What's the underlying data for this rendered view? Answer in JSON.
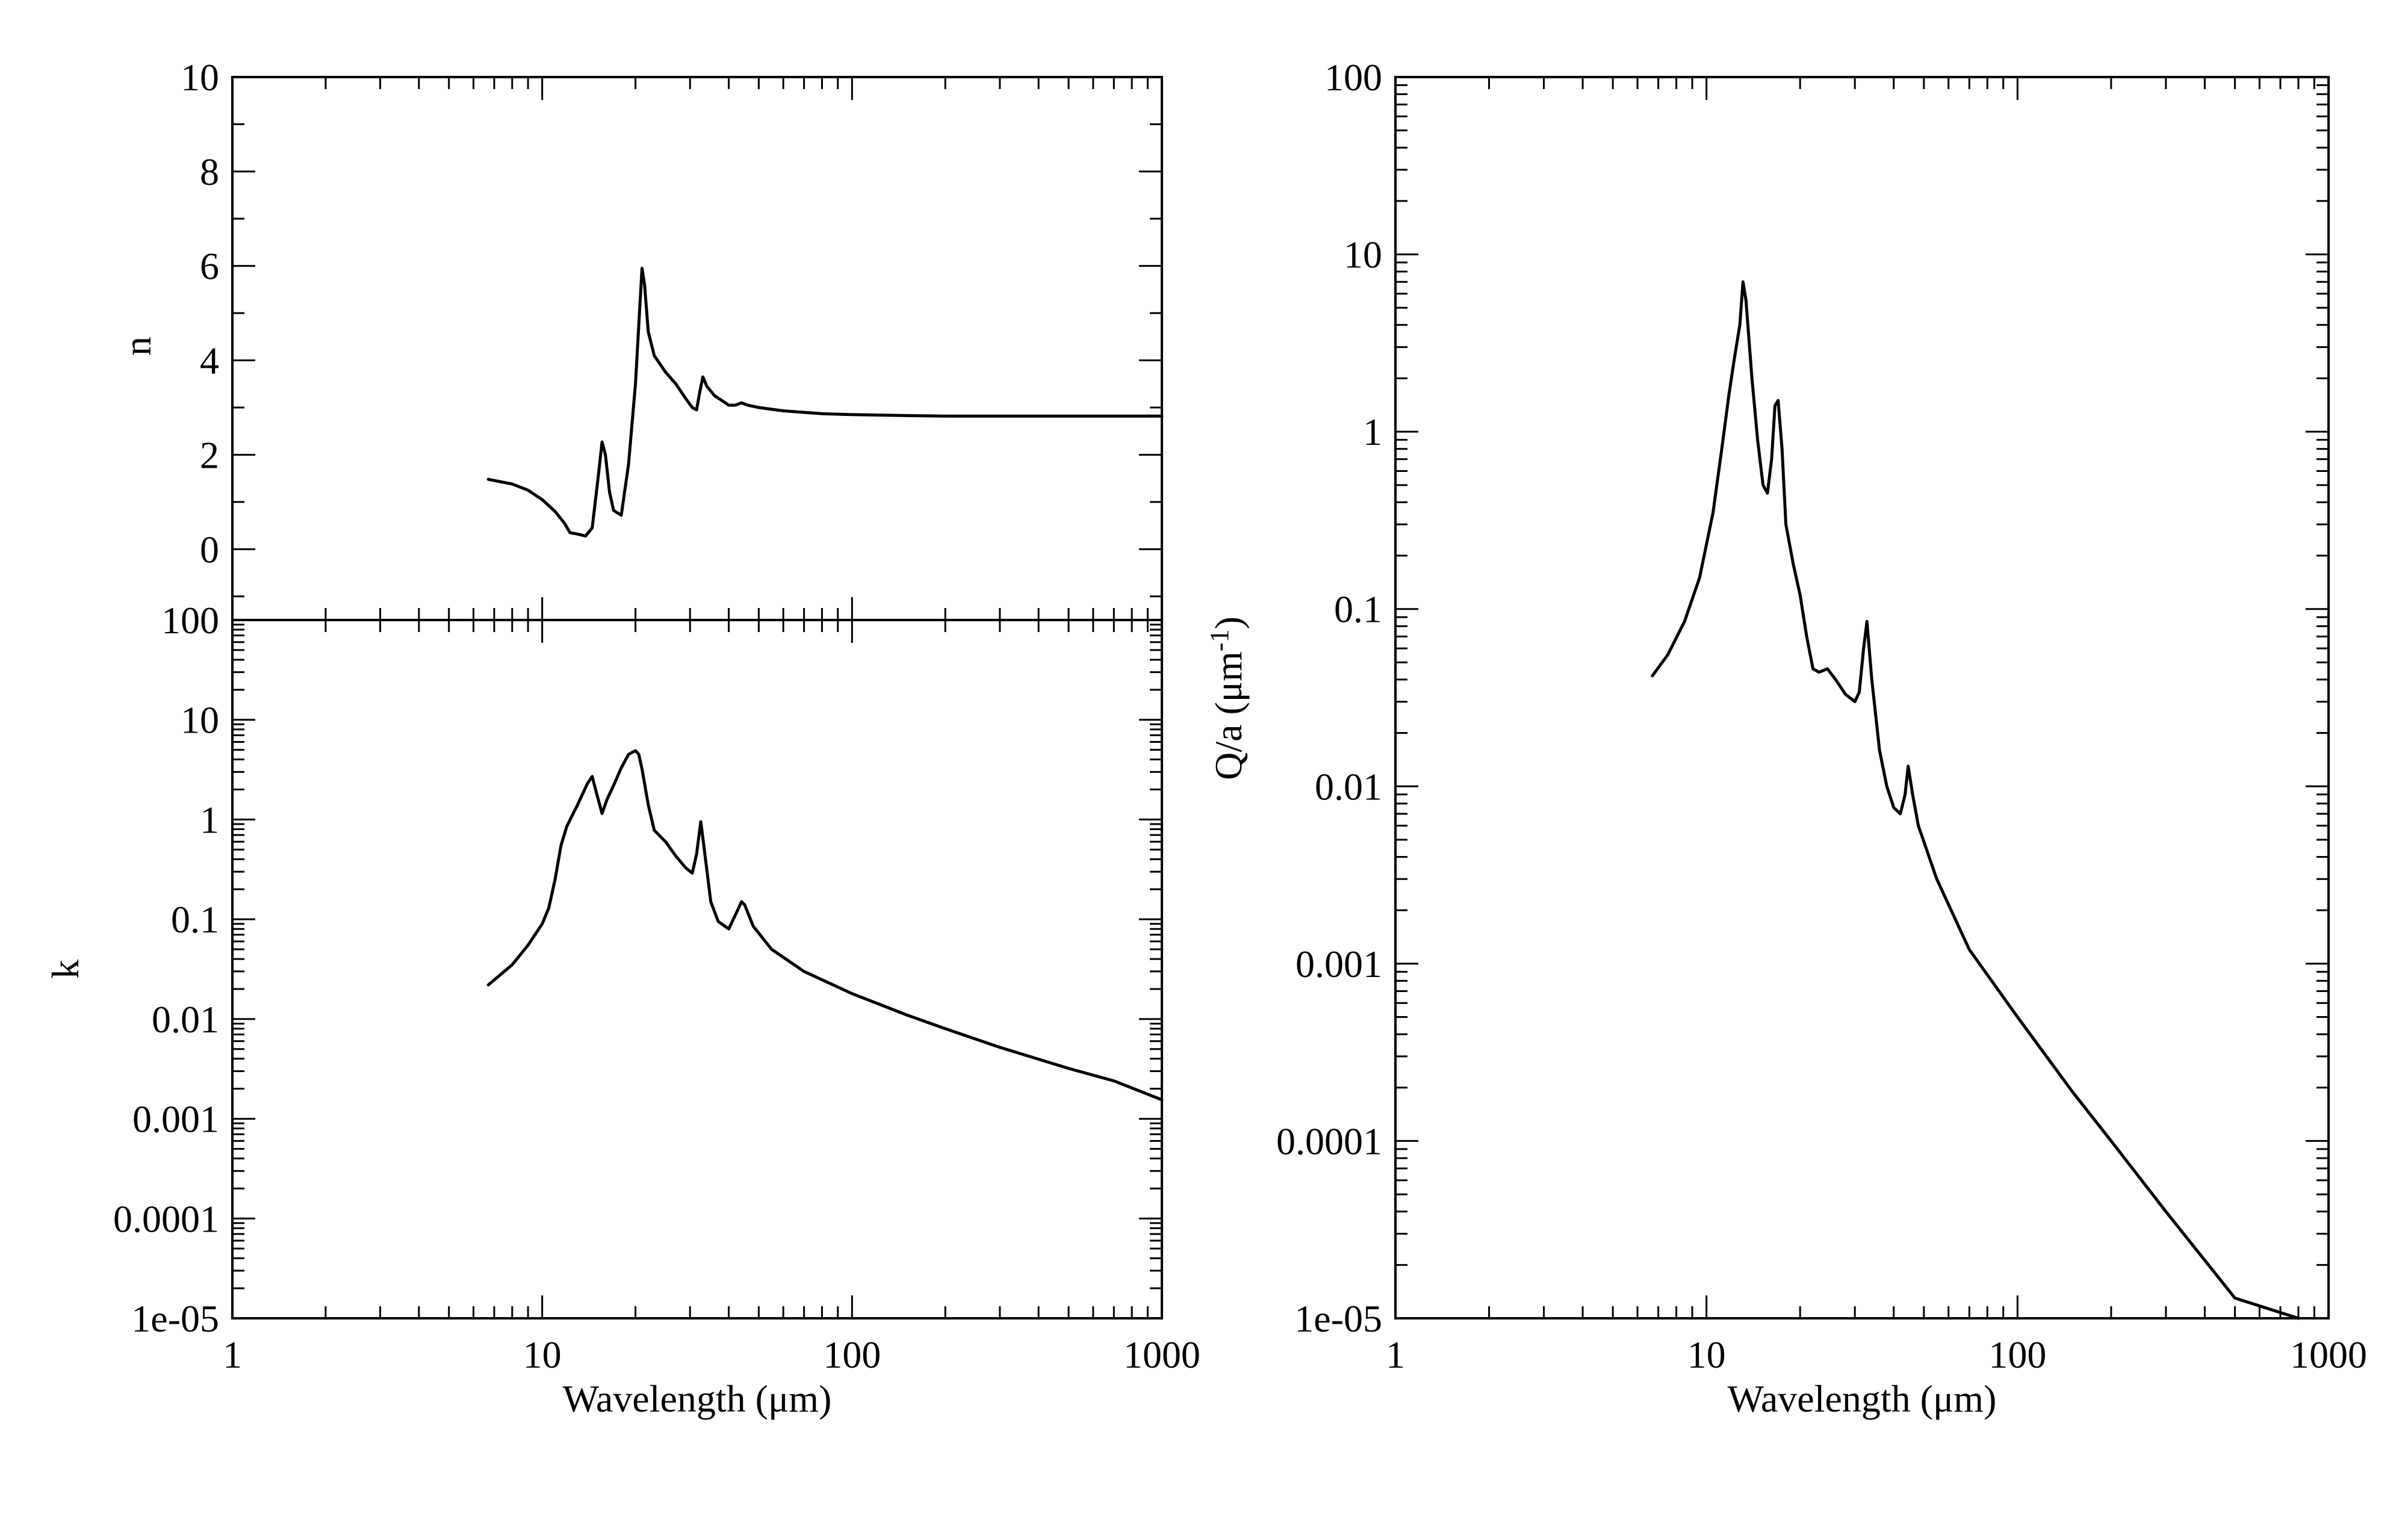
{
  "chart_data": [
    {
      "id": "n",
      "type": "line",
      "ylabel": "n",
      "xlabel": "",
      "xscale": "log",
      "yscale": "linear",
      "xlim": [
        1,
        1000
      ],
      "ylim": [
        -1.5,
        10
      ],
      "x_ticks": [
        1,
        10,
        100,
        1000
      ],
      "x_tick_labels": [],
      "y_ticks": [
        0,
        2,
        4,
        6,
        8,
        10
      ],
      "y_tick_labels": [
        "0",
        "2",
        "4",
        "6",
        "8",
        "10"
      ],
      "series": [
        {
          "x": [
            6.7,
            8,
            9,
            10,
            11,
            11.8,
            12.3,
            13,
            13.8,
            14.5,
            15.2,
            15.6,
            16,
            16.5,
            17,
            18,
            19,
            20,
            20.6,
            21,
            21.4,
            22,
            23,
            25,
            27,
            29,
            30.5,
            31.5,
            32.2,
            33,
            34,
            36,
            38,
            40,
            42,
            44,
            46,
            50,
            60,
            80,
            100,
            150,
            200,
            300,
            500,
            1000
          ],
          "y": [
            1.48,
            1.38,
            1.25,
            1.05,
            0.8,
            0.55,
            0.35,
            0.32,
            0.28,
            0.45,
            1.6,
            2.27,
            2.0,
            1.2,
            0.82,
            0.72,
            1.8,
            3.5,
            5.0,
            5.95,
            5.6,
            4.6,
            4.1,
            3.75,
            3.5,
            3.2,
            3.0,
            2.95,
            3.3,
            3.65,
            3.45,
            3.25,
            3.15,
            3.05,
            3.05,
            3.1,
            3.05,
            3.0,
            2.93,
            2.87,
            2.85,
            2.83,
            2.82,
            2.82,
            2.82,
            2.82
          ]
        }
      ]
    },
    {
      "id": "k",
      "type": "line",
      "ylabel": "k",
      "xlabel": "Wavelength (μm)",
      "xscale": "log",
      "yscale": "log",
      "xlim": [
        1,
        1000
      ],
      "ylim": [
        1e-05,
        100
      ],
      "x_ticks": [
        1,
        10,
        100,
        1000
      ],
      "x_tick_labels": [
        "1",
        "10",
        "100",
        "1000"
      ],
      "y_ticks": [
        1e-05,
        0.0001,
        0.001,
        0.01,
        0.1,
        1,
        10,
        100
      ],
      "y_tick_labels": [
        "1e-05",
        "0.0001",
        "0.001",
        "0.01",
        "0.1",
        "1",
        "10",
        "100"
      ],
      "series": [
        {
          "x": [
            6.7,
            8,
            9,
            10,
            10.5,
            11,
            11.5,
            12,
            12.5,
            13,
            14,
            14.5,
            15,
            15.6,
            16.2,
            17,
            18,
            19,
            20,
            20.5,
            21,
            22,
            23,
            25,
            27,
            29,
            30.5,
            31.5,
            32.5,
            33.5,
            35,
            37,
            40,
            42,
            44,
            45,
            48,
            55,
            70,
            100,
            150,
            200,
            300,
            500,
            700,
            1000
          ],
          "y": [
            0.022,
            0.035,
            0.055,
            0.09,
            0.13,
            0.25,
            0.55,
            0.85,
            1.1,
            1.4,
            2.3,
            2.7,
            1.8,
            1.15,
            1.6,
            2.2,
            3.3,
            4.5,
            4.9,
            4.5,
            3.2,
            1.4,
            0.78,
            0.6,
            0.43,
            0.33,
            0.29,
            0.45,
            0.95,
            0.45,
            0.15,
            0.095,
            0.08,
            0.11,
            0.15,
            0.14,
            0.085,
            0.05,
            0.03,
            0.018,
            0.011,
            0.008,
            0.0052,
            0.0032,
            0.0024,
            0.00155
          ]
        }
      ]
    },
    {
      "id": "qa",
      "type": "line",
      "ylabel": "Q/a (μm",
      "ylabel_sup": "-1",
      "ylabel_close": ")",
      "xlabel": "Wavelength (μm)",
      "xscale": "log",
      "yscale": "log",
      "xlim": [
        1,
        1000
      ],
      "ylim": [
        1e-05,
        100
      ],
      "x_ticks": [
        1,
        10,
        100,
        1000
      ],
      "x_tick_labels": [
        "1",
        "10",
        "100",
        "1000"
      ],
      "y_ticks": [
        1e-05,
        0.0001,
        0.001,
        0.01,
        0.1,
        1,
        10,
        100
      ],
      "y_tick_labels": [
        "1e-05",
        "0.0001",
        "0.001",
        "0.01",
        "0.1",
        "1",
        "10",
        "100"
      ],
      "series": [
        {
          "x": [
            6.7,
            7.5,
            8.5,
            9.5,
            10.5,
            11.2,
            11.8,
            12.3,
            12.8,
            13.1,
            13.4,
            14,
            14.6,
            15.2,
            15.7,
            16.2,
            16.6,
            17,
            17.5,
            18,
            19,
            20,
            21,
            22,
            23,
            24.5,
            26,
            28,
            30,
            31,
            32,
            32.8,
            34,
            36,
            38,
            40,
            42,
            43.5,
            44.5,
            46,
            48,
            55,
            70,
            100,
            150,
            200,
            300,
            500,
            800
          ],
          "y": [
            0.042,
            0.055,
            0.085,
            0.15,
            0.35,
            0.8,
            1.6,
            2.6,
            4.0,
            7.0,
            5.5,
            2.0,
            0.9,
            0.5,
            0.45,
            0.7,
            1.4,
            1.5,
            0.8,
            0.3,
            0.18,
            0.12,
            0.07,
            0.046,
            0.044,
            0.046,
            0.04,
            0.033,
            0.03,
            0.034,
            0.06,
            0.085,
            0.04,
            0.016,
            0.01,
            0.0076,
            0.007,
            0.009,
            0.013,
            0.009,
            0.006,
            0.003,
            0.0012,
            0.0005,
            0.00019,
            0.0001,
            4e-05,
            1.3e-05,
            1e-05
          ]
        }
      ]
    }
  ]
}
